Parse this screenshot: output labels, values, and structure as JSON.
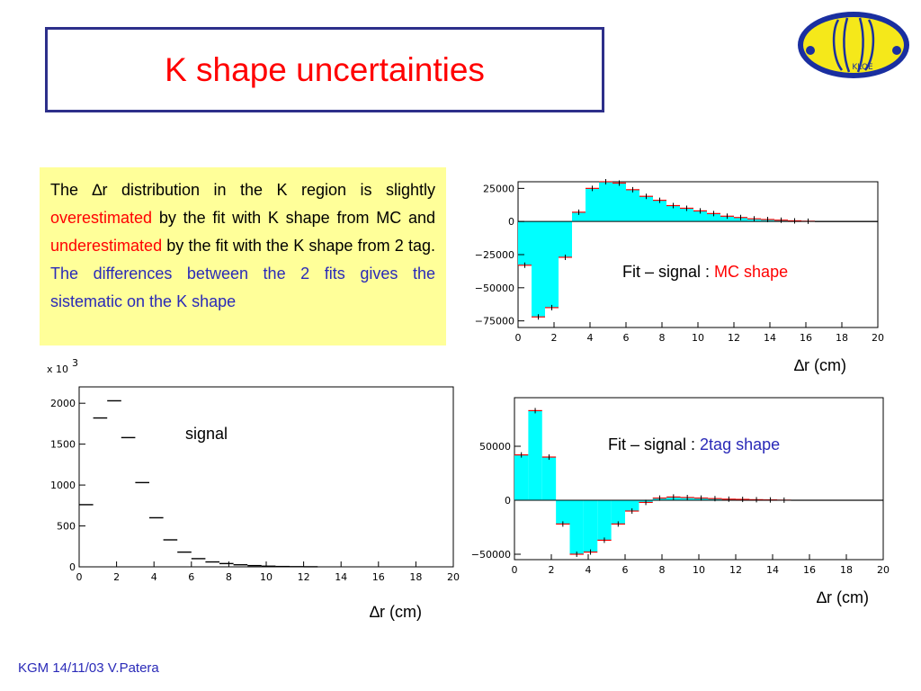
{
  "slide": {
    "title": "K shape uncertainties",
    "footer": "KGM 14/11/03 V.Patera",
    "logo_text": "KLOE"
  },
  "textbox": {
    "p1_a": "The ",
    "p1_delta": "∆",
    "p1_b": "r distribution in the K region is slightly ",
    "p1_over": "overestimated",
    "p1_c": " by the fit with K shape from MC and ",
    "p1_under": "underestimated",
    "p1_d": " by the fit with the K shape from 2 tag.",
    "p2": "The differences between the 2 fits gives the sistematic on the K shape"
  },
  "colors": {
    "fill": "#00ffff",
    "marker": "#ff0000",
    "title": "#ff0000",
    "blue": "#2a2ab8",
    "box": "#ffff99"
  },
  "chart_data": [
    {
      "id": "mc",
      "type": "bar",
      "annotation_prefix": "Fit – signal : ",
      "annotation_highlight": "MC shape",
      "xlabel": "∆r (cm)",
      "xlim": [
        0,
        20
      ],
      "ylim": [
        -80000,
        30000
      ],
      "xticks": [
        0,
        2,
        4,
        6,
        8,
        10,
        12,
        14,
        16,
        18,
        20
      ],
      "yticks": [
        -75000,
        -50000,
        -25000,
        0,
        25000
      ],
      "bin_width": 0.75,
      "values": [
        -33000,
        -72000,
        -65000,
        -27000,
        7000,
        25000,
        30000,
        29000,
        24000,
        19000,
        16000,
        12000,
        10000,
        8000,
        6000,
        4000,
        3000,
        2000,
        1500,
        1000,
        500,
        200,
        0,
        0,
        0,
        0,
        0
      ]
    },
    {
      "id": "signal",
      "type": "scatter",
      "annotation": "signal",
      "xlabel": "∆r (cm)",
      "exponent_label": "x 10",
      "exponent_power": "3",
      "xlim": [
        0,
        20
      ],
      "ylim": [
        0,
        2200
      ],
      "xticks": [
        0,
        2,
        4,
        6,
        8,
        10,
        12,
        14,
        16,
        18,
        20
      ],
      "yticks": [
        0,
        500,
        1000,
        1500,
        2000
      ],
      "bin_width": 0.75,
      "values": [
        760,
        1820,
        2030,
        1580,
        1030,
        600,
        330,
        180,
        100,
        60,
        40,
        25,
        15,
        8,
        4,
        2,
        1
      ]
    },
    {
      "id": "tag",
      "type": "bar",
      "annotation_prefix": "Fit – signal : ",
      "annotation_highlight": "2tag shape",
      "xlabel": "∆r (cm)",
      "xlim": [
        0,
        20
      ],
      "ylim": [
        -55000,
        95000
      ],
      "xticks": [
        0,
        2,
        4,
        6,
        8,
        10,
        12,
        14,
        16,
        18,
        20
      ],
      "yticks": [
        -50000,
        0,
        50000
      ],
      "bin_width": 0.75,
      "values": [
        42000,
        83000,
        40000,
        -22000,
        -50000,
        -48000,
        -37000,
        -22000,
        -10000,
        -2000,
        2000,
        3000,
        2500,
        2000,
        1500,
        1000,
        800,
        500,
        300,
        100,
        0,
        0,
        0,
        0,
        0,
        0,
        0
      ]
    }
  ]
}
